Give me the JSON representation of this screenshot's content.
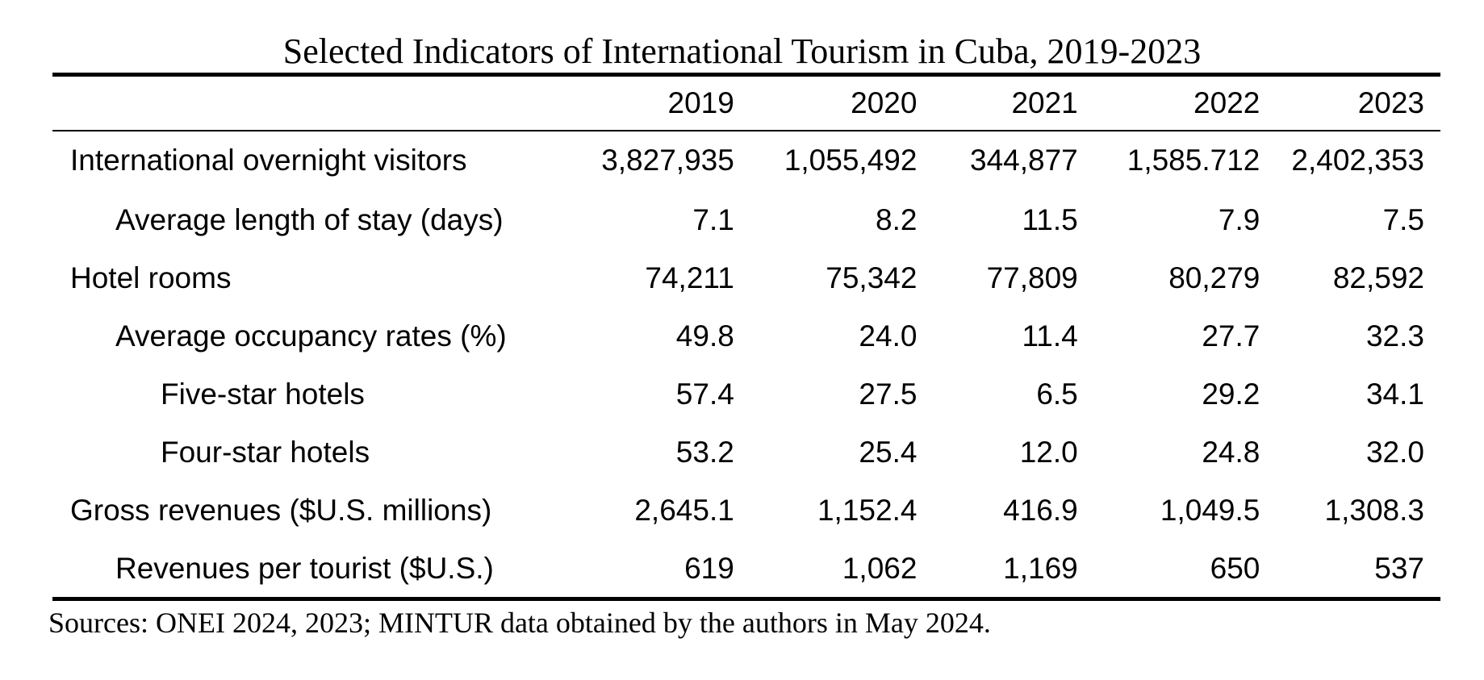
{
  "title": "Selected Indicators of International Tourism in Cuba, 2019-2023",
  "table": {
    "columns": [
      "2019",
      "2020",
      "2021",
      "2022",
      "2023"
    ],
    "rows": [
      {
        "label": "International overnight visitors",
        "indent": 0,
        "values": [
          "3,827,935",
          "1,055,492",
          "344,877",
          "1,585.712",
          "2,402,353"
        ]
      },
      {
        "label": "Average length of stay (days)",
        "indent": 1,
        "values": [
          "7.1",
          "8.2",
          "11.5",
          "7.9",
          "7.5"
        ]
      },
      {
        "label": "Hotel rooms",
        "indent": 0,
        "values": [
          "74,211",
          "75,342",
          "77,809",
          "80,279",
          "82,592"
        ]
      },
      {
        "label": "Average occupancy rates (%)",
        "indent": 1,
        "values": [
          "49.8",
          "24.0",
          "11.4",
          "27.7",
          "32.3"
        ]
      },
      {
        "label": "Five-star hotels",
        "indent": 2,
        "values": [
          "57.4",
          "27.5",
          "6.5",
          "29.2",
          "34.1"
        ]
      },
      {
        "label": "Four-star hotels",
        "indent": 2,
        "values": [
          "53.2",
          "25.4",
          "12.0",
          "24.8",
          "32.0"
        ]
      },
      {
        "label": "Gross revenues ($U.S. millions)",
        "indent": 0,
        "values": [
          "2,645.1",
          "1,152.4",
          "416.9",
          "1,049.5",
          "1,308.3"
        ]
      },
      {
        "label": "Revenues per tourist ($U.S.)",
        "indent": 1,
        "values": [
          "619",
          "1,062",
          "1,169",
          "650",
          "537"
        ]
      }
    ]
  },
  "source": "Sources: ONEI 2024, 2023; MINTUR data obtained by the authors in May 2024."
}
